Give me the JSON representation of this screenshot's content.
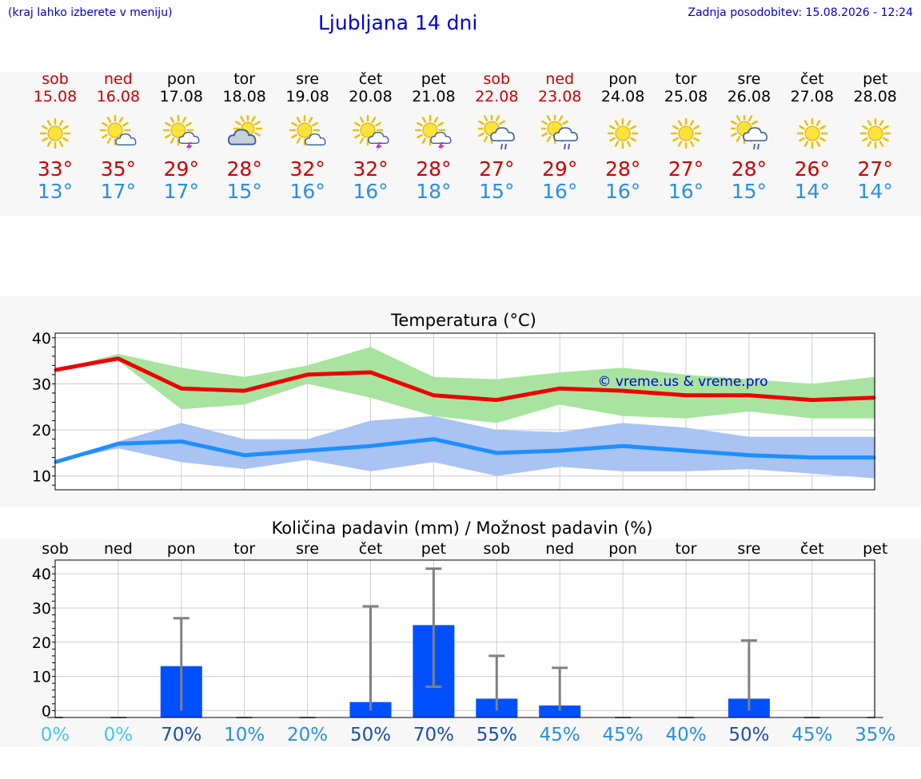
{
  "header": {
    "hint": "(kraj lahko izberete v meniju)",
    "title": "Ljubljana 14 dni",
    "updated": "Zadnja posodobitev: 15.08.2026 - 12:24"
  },
  "colors": {
    "weekend": "#cc0000",
    "weekday": "#000000",
    "max_line": "#ee0000",
    "min_line": "#1e8fff",
    "max_band": "#a8e4a0",
    "min_band": "#a9c3f2",
    "precip_bar": "#0050ff",
    "error_bar": "#808080",
    "pct_light": "#44c8e8",
    "pct_mid": "#2a90d8",
    "pct_dark": "#1a4fa8"
  },
  "days": [
    {
      "name": "sob",
      "date": "15.08",
      "icon": "sun-icon",
      "max": "33°",
      "min": "13°",
      "weekend": true
    },
    {
      "name": "ned",
      "date": "16.08",
      "icon": "sun-cloud-icon",
      "max": "35°",
      "min": "17°",
      "weekend": true
    },
    {
      "name": "pon",
      "date": "17.08",
      "icon": "sun-thunder-icon",
      "max": "29°",
      "min": "17°",
      "weekend": false
    },
    {
      "name": "tor",
      "date": "18.08",
      "icon": "cloud-sun-icon",
      "max": "28°",
      "min": "15°",
      "weekend": false
    },
    {
      "name": "sre",
      "date": "19.08",
      "icon": "sun-cloud-icon",
      "max": "32°",
      "min": "16°",
      "weekend": false
    },
    {
      "name": "čet",
      "date": "20.08",
      "icon": "sun-thunder-icon",
      "max": "32°",
      "min": "16°",
      "weekend": false
    },
    {
      "name": "pet",
      "date": "21.08",
      "icon": "sun-thunder-icon",
      "max": "28°",
      "min": "18°",
      "weekend": false
    },
    {
      "name": "sob",
      "date": "22.08",
      "icon": "sun-rain-icon",
      "max": "27°",
      "min": "15°",
      "weekend": true
    },
    {
      "name": "ned",
      "date": "23.08",
      "icon": "sun-rain-icon",
      "max": "29°",
      "min": "16°",
      "weekend": true
    },
    {
      "name": "pon",
      "date": "24.08",
      "icon": "sun-icon",
      "max": "28°",
      "min": "16°",
      "weekend": false
    },
    {
      "name": "tor",
      "date": "25.08",
      "icon": "sun-icon",
      "max": "27°",
      "min": "16°",
      "weekend": false
    },
    {
      "name": "sre",
      "date": "26.08",
      "icon": "sun-rain-icon",
      "max": "28°",
      "min": "15°",
      "weekend": false
    },
    {
      "name": "čet",
      "date": "27.08",
      "icon": "sun-icon",
      "max": "26°",
      "min": "14°",
      "weekend": false
    },
    {
      "name": "pet",
      "date": "28.08",
      "icon": "sun-icon",
      "max": "27°",
      "min": "14°",
      "weekend": false
    }
  ],
  "chart_data": [
    {
      "type": "line",
      "title": "Temperatura (°C)",
      "watermark": "© vreme.us & vreme.pro",
      "ylim": [
        7,
        41
      ],
      "yticks": [
        10,
        20,
        30,
        40
      ],
      "grid": true,
      "x": [
        "15.08",
        "16.08",
        "17.08",
        "18.08",
        "19.08",
        "20.08",
        "21.08",
        "22.08",
        "23.08",
        "24.08",
        "25.08",
        "26.08",
        "27.08",
        "28.08"
      ],
      "series": [
        {
          "values": [
            33,
            35.5,
            29,
            28.5,
            32,
            32.5,
            27.5,
            26.5,
            29,
            28.5,
            27.5,
            27.5,
            26.5,
            27
          ],
          "band_low": [
            33,
            35,
            24.5,
            25.5,
            30,
            27,
            23,
            21.5,
            25.5,
            23,
            22.5,
            24,
            22.5,
            22.5
          ],
          "band_high": [
            33,
            36.5,
            33.5,
            31.5,
            34,
            38,
            31.5,
            31,
            32.5,
            33.5,
            32,
            31,
            30,
            31.5
          ]
        },
        {
          "values": [
            13,
            17,
            17.5,
            14.5,
            15.5,
            16.5,
            18,
            15,
            15.5,
            16.5,
            15.5,
            14.5,
            14,
            14
          ],
          "band_low": [
            13,
            16,
            13,
            11.5,
            13.5,
            11,
            13,
            10,
            12,
            11,
            11,
            11.5,
            10.5,
            9.5
          ],
          "band_high": [
            13,
            17.5,
            21.5,
            18,
            18,
            22,
            23,
            20,
            19.5,
            21.5,
            20.5,
            18.5,
            18.5,
            18.5
          ]
        }
      ]
    },
    {
      "type": "bar",
      "title": "Količina padavin (mm) / Možnost padavin (%)",
      "ylim": [
        -2,
        44
      ],
      "yticks": [
        0,
        10,
        20,
        30,
        40
      ],
      "grid": true,
      "categories": [
        "sob",
        "ned",
        "pon",
        "tor",
        "sre",
        "čet",
        "pet",
        "sob",
        "ned",
        "pon",
        "tor",
        "sre",
        "čet",
        "pet"
      ],
      "values": [
        0,
        0,
        13,
        0,
        0,
        2.5,
        25,
        3.5,
        1.5,
        0,
        0,
        3.5,
        0,
        0
      ],
      "error_high": [
        0,
        0,
        27,
        0,
        0,
        30.5,
        41.5,
        16,
        12.5,
        0,
        0,
        20.5,
        0,
        0
      ],
      "error_low": [
        0,
        0,
        0,
        0,
        0,
        0,
        7,
        0,
        0,
        0,
        0,
        0,
        0,
        0
      ],
      "probability": [
        "0%",
        "0%",
        "70%",
        "10%",
        "20%",
        "50%",
        "70%",
        "55%",
        "45%",
        "45%",
        "40%",
        "50%",
        "45%",
        "35%"
      ],
      "probability_color": [
        "pct_light",
        "pct_light",
        "pct_dark",
        "pct_mid",
        "pct_mid",
        "pct_dark",
        "pct_dark",
        "pct_dark",
        "pct_mid",
        "pct_mid",
        "pct_mid",
        "pct_dark",
        "pct_mid",
        "pct_mid"
      ]
    }
  ]
}
